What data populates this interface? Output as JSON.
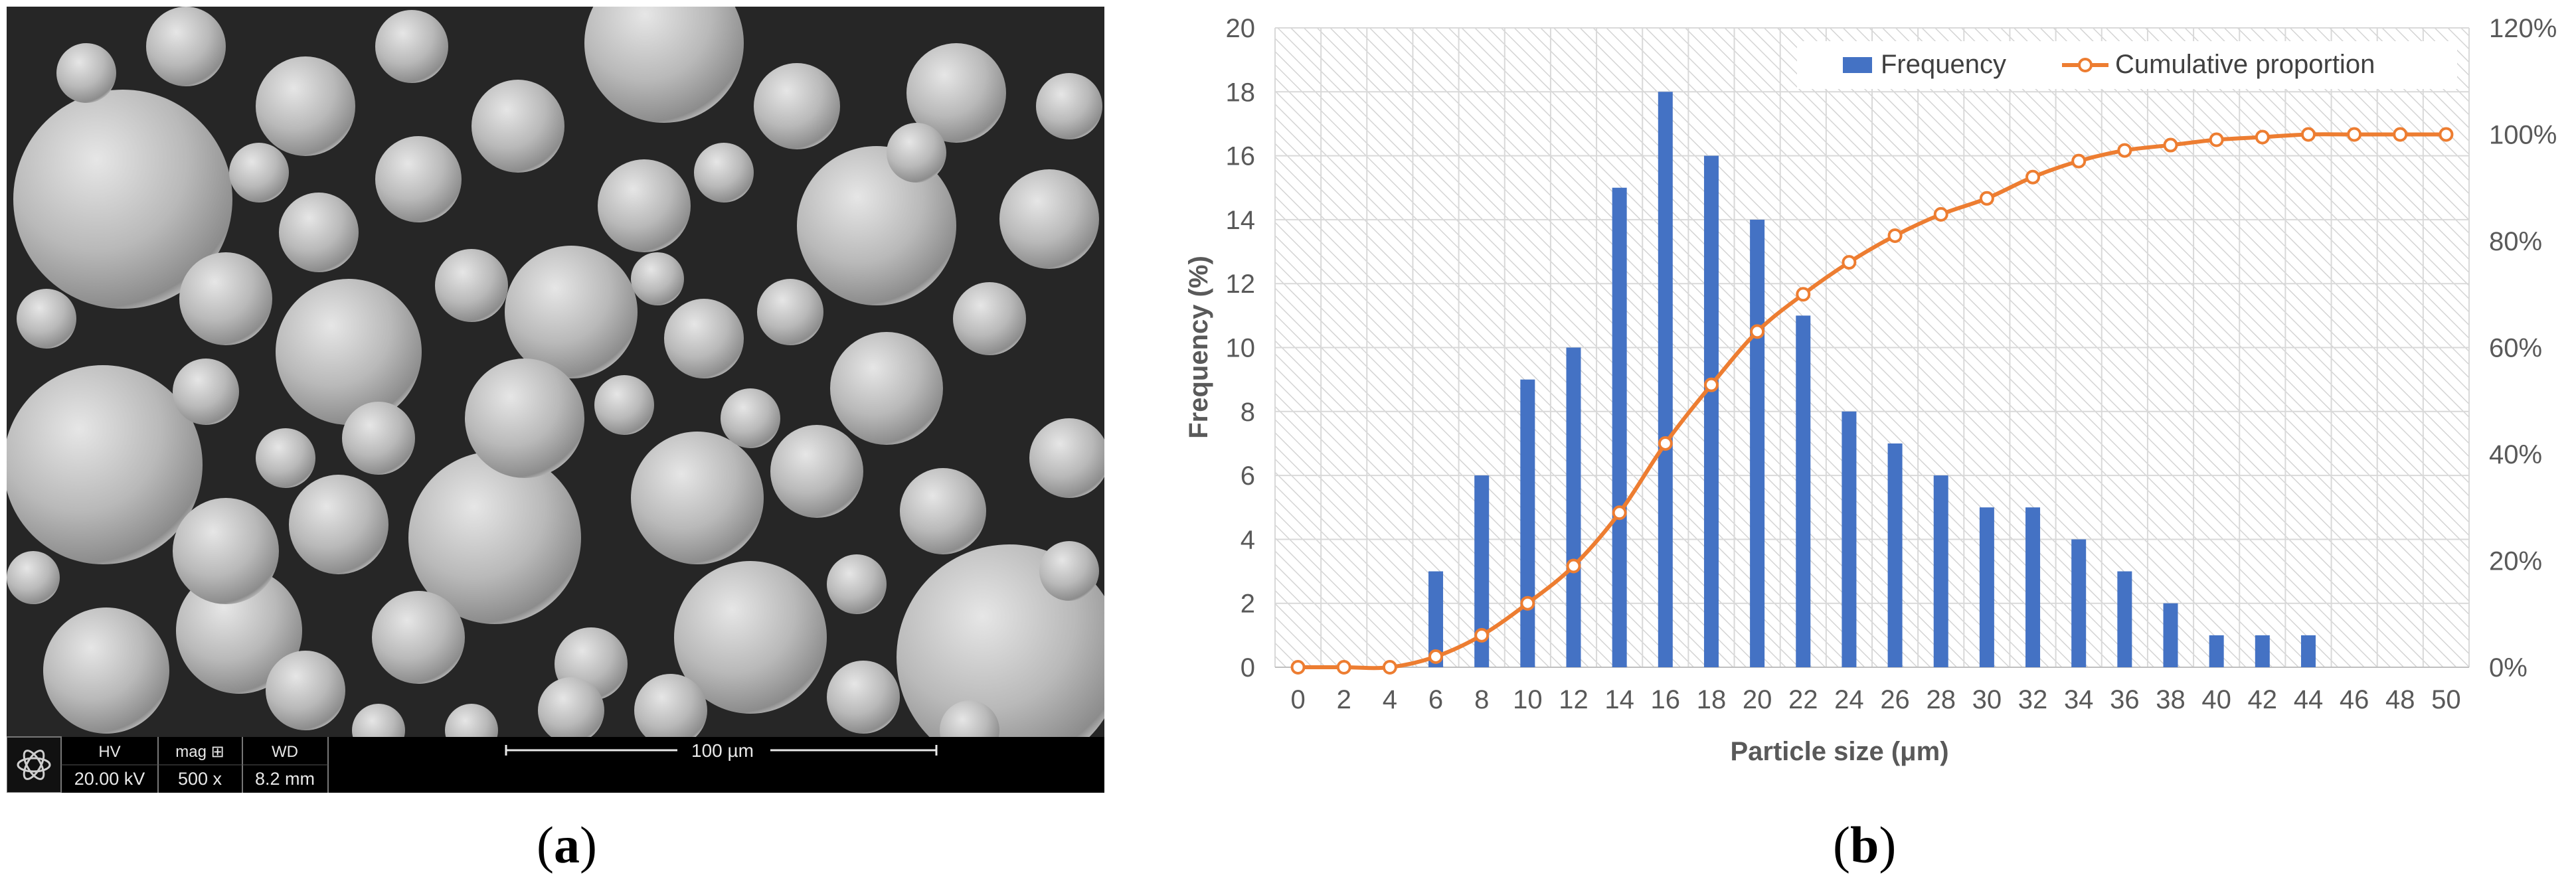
{
  "panels": {
    "a_label": "a",
    "b_label": "b"
  },
  "sem": {
    "databar": {
      "hv_label": "HV",
      "hv_value": "20.00 kV",
      "mag_label": "mag ⊞",
      "mag_value": "500 x",
      "wd_label": "WD",
      "wd_value": "8.2 mm",
      "scale_label": "100 µm"
    }
  },
  "colors": {
    "bar": "#4472C4",
    "line": "#ED7D31",
    "sem_background": "#262626",
    "databar": "#000000"
  },
  "chart_data": {
    "type": "bar",
    "categories": [
      "0",
      "2",
      "4",
      "6",
      "8",
      "10",
      "12",
      "14",
      "16",
      "18",
      "20",
      "22",
      "24",
      "26",
      "28",
      "30",
      "32",
      "34",
      "36",
      "38",
      "40",
      "42",
      "44",
      "46",
      "48",
      "50"
    ],
    "series": [
      {
        "name": "Frequency",
        "type": "bar",
        "axis": "left",
        "values": [
          0,
          0,
          0,
          3,
          6,
          9,
          10,
          15,
          18,
          16,
          14,
          11,
          8,
          7,
          6,
          5,
          5,
          4,
          3,
          2,
          1,
          1,
          1,
          0,
          0,
          0
        ]
      },
      {
        "name": "Cumulative proportion",
        "type": "line",
        "axis": "right",
        "values": [
          0,
          0,
          0,
          2,
          6,
          12,
          19,
          29,
          42,
          53,
          63,
          70,
          76,
          81,
          85,
          88,
          92,
          95,
          97,
          98,
          99,
          99.5,
          100,
          100,
          100,
          100
        ]
      }
    ],
    "xlabel": "Particle size (μm)",
    "ylabel": "Frequency (%)",
    "ylim": [
      0,
      20
    ],
    "yticks": [
      "0",
      "2",
      "4",
      "6",
      "8",
      "10",
      "12",
      "14",
      "16",
      "18",
      "20"
    ],
    "y2lim": [
      0,
      120
    ],
    "y2ticks": [
      "0%",
      "20%",
      "40%",
      "60%",
      "80%",
      "100%",
      "120%"
    ],
    "legend": "top-right",
    "grid": true
  }
}
